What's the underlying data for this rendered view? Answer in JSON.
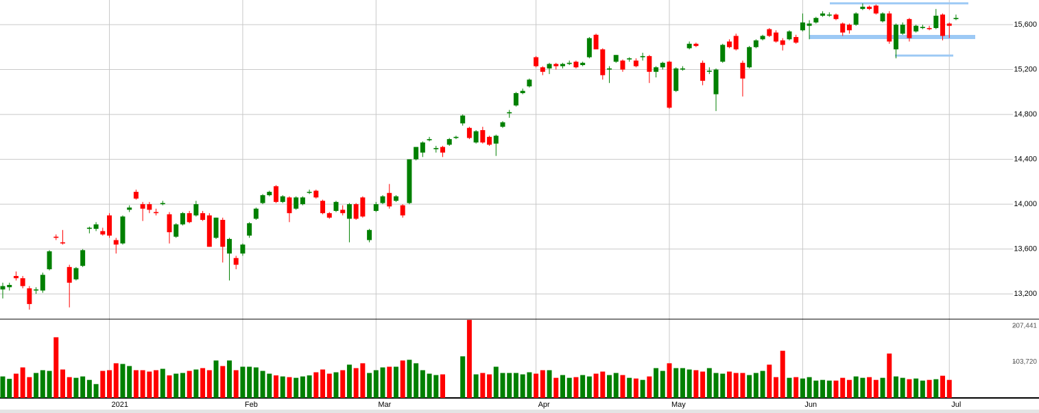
{
  "chart_data": {
    "type": "candlestick",
    "categories": [
      null,
      null,
      null,
      null,
      null,
      null,
      null,
      null,
      null,
      null,
      null,
      null,
      null,
      null,
      null,
      null,
      "2021",
      null,
      null,
      null,
      null,
      null,
      null,
      null,
      null,
      null,
      null,
      null,
      null,
      null,
      null,
      null,
      null,
      null,
      null,
      null,
      "Feb",
      null,
      null,
      null,
      null,
      null,
      null,
      null,
      null,
      null,
      null,
      null,
      null,
      null,
      null,
      null,
      null,
      null,
      null,
      null,
      "Mar",
      null,
      null,
      null,
      null,
      null,
      null,
      null,
      null,
      null,
      null,
      null,
      null,
      null,
      null,
      null,
      null,
      null,
      null,
      null,
      null,
      null,
      null,
      null,
      "Apr",
      null,
      null,
      null,
      null,
      null,
      null,
      null,
      null,
      null,
      null,
      null,
      null,
      null,
      null,
      null,
      null,
      null,
      null,
      null,
      "May",
      null,
      null,
      null,
      null,
      null,
      null,
      null,
      null,
      null,
      null,
      null,
      null,
      null,
      null,
      null,
      null,
      null,
      null,
      null,
      "Jun",
      null,
      null,
      null,
      null,
      null,
      null,
      null,
      null,
      null,
      null,
      null,
      null,
      null,
      null,
      null,
      null,
      null,
      null,
      null,
      null,
      null,
      "Jul",
      null
    ],
    "open": [
      13240,
      13260,
      13360,
      13340,
      13250,
      13230,
      13230,
      13420,
      13710,
      13660,
      13440,
      13330,
      13450,
      13780,
      13780,
      13760,
      13900,
      13680,
      13650,
      13950,
      14110,
      14000,
      14000,
      13930,
      14000,
      13910,
      13710,
      13820,
      13920,
      13900,
      13920,
      13900,
      13700,
      13860,
      13560,
      13520,
      13560,
      13720,
      13870,
      14010,
      14080,
      14160,
      14020,
      14060,
      13960,
      14000,
      14110,
      14120,
      14030,
      13920,
      13940,
      13950,
      13870,
      14000,
      14060,
      13680,
      13940,
      14010,
      14100,
      14030,
      13990,
      14010,
      14400,
      14460,
      14570,
      14490,
      14510,
      14530,
      14590,
      14720,
      14680,
      14550,
      14660,
      14600,
      14540,
      14690,
      14810,
      14880,
      14990,
      15050,
      15310,
      15220,
      15210,
      15250,
      15230,
      15250,
      15270,
      15240,
      15310,
      15510,
      15380,
      15200,
      15270,
      15280,
      15290,
      15280,
      15310,
      15320,
      15180,
      15220,
      15270,
      15010,
      15200,
      15390,
      15430,
      15260,
      15180,
      14980,
      15270,
      15450,
      15500,
      15260,
      15220,
      15400,
      15470,
      15560,
      15530,
      15460,
      15470,
      15490,
      15550,
      15590,
      15620,
      15680,
      15690,
      15690,
      15610,
      15600,
      15600,
      15740,
      15760,
      15770,
      15630,
      15700,
      15380,
      15520,
      15650,
      15540,
      15570,
      15570,
      15570,
      15690,
      15610,
      15650
    ],
    "high": [
      13300,
      13300,
      13400,
      13360,
      13270,
      13260,
      13390,
      13590,
      13730,
      13770,
      13460,
      13440,
      13600,
      13800,
      13840,
      13790,
      13920,
      13700,
      13900,
      13990,
      14130,
      14020,
      14020,
      13960,
      14030,
      13930,
      13830,
      13930,
      13940,
      14030,
      13940,
      13920,
      13880,
      13880,
      13700,
      13540,
      13650,
      13840,
      13970,
      14090,
      14120,
      14170,
      14080,
      14070,
      14070,
      14070,
      14130,
      14130,
      14040,
      13930,
      14030,
      13990,
      14010,
      14010,
      14070,
      13780,
      14020,
      14080,
      14180,
      14080,
      14000,
      14400,
      14510,
      14560,
      14600,
      14520,
      14520,
      14590,
      14610,
      14800,
      14690,
      14660,
      14690,
      14610,
      14620,
      14740,
      14840,
      15000,
      15030,
      15120,
      15320,
      15230,
      15260,
      15260,
      15260,
      15280,
      15280,
      15270,
      15490,
      15520,
      15390,
      15230,
      15330,
      15290,
      15310,
      15300,
      15350,
      15330,
      15230,
      15270,
      15280,
      15220,
      15230,
      15450,
      15440,
      15280,
      15220,
      15210,
      15430,
      15470,
      15520,
      15280,
      15410,
      15470,
      15510,
      15570,
      15550,
      15480,
      15550,
      15510,
      15700,
      15640,
      15670,
      15720,
      15710,
      15700,
      15620,
      15610,
      15710,
      15790,
      15770,
      15780,
      15710,
      15720,
      15610,
      15620,
      15660,
      15600,
      15600,
      15590,
      15740,
      15700,
      15620,
      15690
    ],
    "low": [
      13160,
      13230,
      13320,
      13250,
      13060,
      13200,
      13210,
      13410,
      13680,
      13640,
      13080,
      13320,
      13440,
      13740,
      13760,
      13720,
      13700,
      13560,
      13640,
      13930,
      14040,
      13850,
      13920,
      13900,
      13990,
      13650,
      13700,
      13810,
      13830,
      13890,
      13850,
      13620,
      13690,
      13480,
      13320,
      13420,
      13540,
      13700,
      13860,
      14000,
      14070,
      14010,
      14010,
      13840,
      13950,
      13990,
      14090,
      14050,
      13910,
      13870,
      13930,
      13900,
      13660,
      13860,
      13880,
      13660,
      13930,
      14000,
      13960,
      14020,
      13880,
      14000,
      14390,
      14420,
      14560,
      14460,
      14420,
      14520,
      14580,
      14700,
      14580,
      14540,
      14540,
      14520,
      14430,
      14680,
      14770,
      14870,
      14980,
      15040,
      15220,
      15150,
      15160,
      15200,
      15210,
      15240,
      15210,
      15230,
      15300,
      15380,
      15110,
      15080,
      15260,
      15180,
      15270,
      15220,
      15280,
      15080,
      15130,
      15200,
      14850,
      15000,
      15190,
      15380,
      15400,
      15060,
      15160,
      14830,
      15260,
      15390,
      15370,
      14960,
      15210,
      15390,
      15460,
      15490,
      15440,
      15370,
      15460,
      15430,
      15540,
      15470,
      15610,
      15670,
      15670,
      15640,
      15500,
      15520,
      15590,
      15730,
      15730,
      15690,
      15620,
      15430,
      15300,
      15510,
      15450,
      15530,
      15560,
      15550,
      15560,
      15460,
      15480,
      15640
    ],
    "close": [
      13270,
      13280,
      13340,
      13270,
      13110,
      13240,
      13370,
      13580,
      13700,
      13650,
      13300,
      13430,
      13590,
      13790,
      13820,
      13730,
      13720,
      13640,
      13890,
      13970,
      14050,
      13960,
      13950,
      13920,
      14010,
      13750,
      13820,
      13920,
      13840,
      14000,
      13860,
      13620,
      13880,
      13620,
      13690,
      13460,
      13640,
      13830,
      13960,
      14080,
      14110,
      14020,
      14070,
      13920,
      14060,
      14060,
      14110,
      14060,
      13920,
      13880,
      14020,
      13920,
      14000,
      13870,
      13890,
      13770,
      14000,
      14070,
      13980,
      14070,
      13900,
      14400,
      14510,
      14550,
      14580,
      14500,
      14460,
      14580,
      14600,
      14790,
      14590,
      14650,
      14550,
      14530,
      14610,
      14730,
      14820,
      14990,
      15010,
      15110,
      15230,
      15180,
      15250,
      15230,
      15250,
      15260,
      15220,
      15260,
      15480,
      15380,
      15150,
      15210,
      15330,
      15200,
      15300,
      15230,
      15320,
      15180,
      15220,
      15260,
      14860,
      15210,
      15210,
      15430,
      15410,
      15100,
      15190,
      15200,
      15420,
      15400,
      15380,
      15120,
      15400,
      15460,
      15500,
      15500,
      15450,
      15420,
      15540,
      15440,
      15620,
      15610,
      15660,
      15700,
      15690,
      15650,
      15530,
      15550,
      15700,
      15760,
      15740,
      15700,
      15700,
      15450,
      15600,
      15600,
      15480,
      15590,
      15580,
      15560,
      15680,
      15500,
      15590,
      15660
    ],
    "volume": [
      62000,
      55000,
      70000,
      88000,
      60000,
      72000,
      80000,
      78000,
      175000,
      82000,
      60000,
      58000,
      62000,
      52000,
      40000,
      78000,
      80000,
      100000,
      98000,
      92000,
      80000,
      80000,
      76000,
      80000,
      84000,
      65000,
      70000,
      72000,
      78000,
      82000,
      86000,
      80000,
      108000,
      92000,
      108000,
      80000,
      90000,
      90000,
      88000,
      78000,
      70000,
      65000,
      62000,
      60000,
      58000,
      62000,
      65000,
      74000,
      82000,
      70000,
      74000,
      80000,
      96000,
      86000,
      100000,
      72000,
      80000,
      88000,
      90000,
      90000,
      108000,
      110000,
      100000,
      80000,
      70000,
      66000,
      68000,
      null,
      null,
      120000,
      225000,
      68000,
      72000,
      68000,
      90000,
      72000,
      72000,
      72000,
      68000,
      74000,
      70000,
      80000,
      80000,
      58000,
      66000,
      58000,
      60000,
      66000,
      62000,
      70000,
      76000,
      66000,
      72000,
      66000,
      58000,
      56000,
      52000,
      62000,
      86000,
      78000,
      100000,
      86000,
      86000,
      82000,
      80000,
      76000,
      86000,
      72000,
      70000,
      76000,
      72000,
      72000,
      66000,
      72000,
      78000,
      96000,
      60000,
      136000,
      58000,
      60000,
      56000,
      60000,
      50000,
      52000,
      50000,
      50000,
      58000,
      52000,
      62000,
      58000,
      60000,
      52000,
      58000,
      128000,
      62000,
      58000,
      54000,
      56000,
      50000,
      52000,
      54000,
      64000,
      52000,
      null
    ],
    "up_color": "#008000",
    "down_color": "#ff0000",
    "level_color": "#9cc9f5",
    "levels": [
      15790,
      15490,
      15325
    ],
    "ylim": [
      12975,
      15820
    ],
    "yticks": [
      {
        "value": 13200,
        "label": "13,200"
      },
      {
        "value": 13600,
        "label": "13,600"
      },
      {
        "value": 14000,
        "label": "14,000"
      },
      {
        "value": 14400,
        "label": "14,400"
      },
      {
        "value": 14800,
        "label": "14,800"
      },
      {
        "value": 15200,
        "label": "15,200"
      },
      {
        "value": 15600,
        "label": "15,600"
      }
    ],
    "y2lim": [
      0,
      227200
    ],
    "y2ticks": [
      {
        "value": 103720,
        "label": "103,720"
      },
      {
        "value": 207441,
        "label": "207,441"
      }
    ],
    "grid": true
  }
}
